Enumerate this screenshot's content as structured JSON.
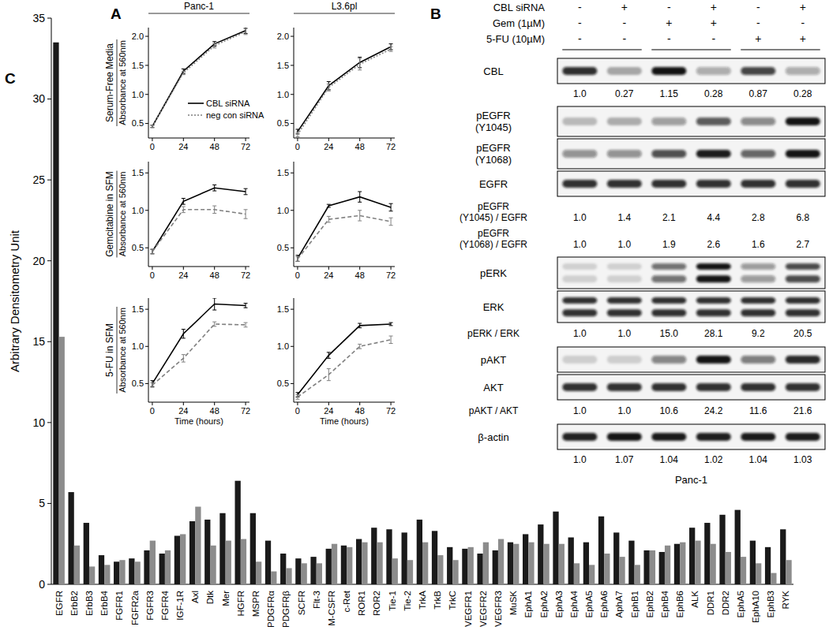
{
  "panel_labels": [
    "A",
    "B",
    "C"
  ],
  "chart_data": [
    {
      "type": "line",
      "title": "Panc-1",
      "condition_label": "Serum-Free Media",
      "ylabel": "Absorbance at 560nm",
      "x": [
        0,
        24,
        48,
        72
      ],
      "xlim": [
        -3,
        75
      ],
      "xticks": [
        0,
        24,
        48,
        72
      ],
      "ylim": [
        0.25,
        2.15
      ],
      "yticks": [
        0.5,
        {
          "value": 1,
          "label": "1.0"
        },
        1.5,
        {
          "value": 2,
          "label": "2.0"
        }
      ],
      "legend": "lower right",
      "series": [
        {
          "name": "CBL siRNA",
          "color": "#000000",
          "line_style": "solid",
          "values": [
            0.45,
            1.4,
            1.87,
            2.1
          ],
          "errors": [
            0.02,
            0.04,
            0.04,
            0.05
          ]
        },
        {
          "name": "neg con siRNA",
          "color": "#808080",
          "line_style": "dotted",
          "values": [
            0.45,
            1.37,
            1.84,
            2.08
          ],
          "errors": [
            0.02,
            0.03,
            0.04,
            0.05
          ]
        }
      ]
    },
    {
      "type": "line",
      "title": "L3.6pl",
      "x": [
        0,
        24,
        48,
        72
      ],
      "xlim": [
        -3,
        75
      ],
      "xticks": [
        0,
        24,
        48,
        72
      ],
      "ylim": [
        0.25,
        2.15
      ],
      "yticks": [
        0.5,
        {
          "value": 1,
          "label": "1.0"
        },
        1.5,
        {
          "value": 2,
          "label": "2.0"
        }
      ],
      "series": [
        {
          "name": "CBL siRNA",
          "color": "#000000",
          "line_style": "solid",
          "values": [
            0.36,
            1.15,
            1.55,
            1.82
          ],
          "errors": [
            0.04,
            0.07,
            0.09,
            0.05
          ]
        },
        {
          "name": "neg con siRNA",
          "color": "#808080",
          "line_style": "dotted",
          "values": [
            0.31,
            1.12,
            1.52,
            1.78
          ],
          "errors": [
            0.04,
            0.06,
            0.1,
            0.04
          ]
        }
      ]
    },
    {
      "type": "line",
      "condition_label": "Gemcitabine in SFM",
      "ylabel": "Absorbance at 560nm",
      "x": [
        0,
        24,
        48,
        72
      ],
      "xlim": [
        -3,
        75
      ],
      "xticks": [
        0,
        24,
        48,
        72
      ],
      "ylim": [
        0.25,
        1.65
      ],
      "yticks": [
        0.5,
        {
          "value": 1,
          "label": "1.0"
        },
        1.5
      ],
      "series": [
        {
          "name": "CBL siRNA",
          "color": "#000000",
          "line_style": "solid",
          "values": [
            0.45,
            1.12,
            1.3,
            1.25
          ],
          "errors": [
            0.03,
            0.04,
            0.04,
            0.04
          ]
        },
        {
          "name": "neg con siRNA",
          "color": "#808080",
          "line_style": "dashed",
          "values": [
            0.45,
            1.01,
            1.01,
            0.95
          ],
          "errors": [
            0.03,
            0.04,
            0.05,
            0.06
          ]
        }
      ]
    },
    {
      "type": "line",
      "x": [
        0,
        24,
        48,
        72
      ],
      "xlim": [
        -3,
        75
      ],
      "xticks": [
        0,
        24,
        48,
        72
      ],
      "ylim": [
        0.25,
        1.65
      ],
      "yticks": [
        0.5,
        {
          "value": 1,
          "label": "1.0"
        },
        1.5
      ],
      "series": [
        {
          "name": "CBL siRNA",
          "color": "#000000",
          "line_style": "solid",
          "values": [
            0.36,
            1.06,
            1.18,
            1.04
          ],
          "errors": [
            0.04,
            0.02,
            0.07,
            0.05
          ]
        },
        {
          "name": "neg con siRNA",
          "color": "#808080",
          "line_style": "dashed",
          "values": [
            0.35,
            0.88,
            0.93,
            0.85
          ],
          "errors": [
            0.03,
            0.04,
            0.07,
            0.05
          ]
        }
      ]
    },
    {
      "type": "line",
      "condition_label": "5-FU in SFM",
      "ylabel": "Absorbance at 560nm",
      "xlabel": "Time (hours)",
      "x": [
        0,
        24,
        48,
        72
      ],
      "xlim": [
        -3,
        75
      ],
      "xticks": [
        0,
        24,
        48,
        72
      ],
      "ylim": [
        0.25,
        1.65
      ],
      "yticks": [
        0.5,
        {
          "value": 1,
          "label": "1.0"
        },
        1.5
      ],
      "series": [
        {
          "name": "CBL siRNA",
          "color": "#000000",
          "line_style": "solid",
          "values": [
            0.5,
            1.17,
            1.57,
            1.55
          ],
          "errors": [
            0.04,
            0.06,
            0.08,
            0.03
          ]
        },
        {
          "name": "neg con siRNA",
          "color": "#808080",
          "line_style": "dashed",
          "values": [
            0.48,
            0.84,
            1.3,
            1.29
          ],
          "errors": [
            0.03,
            0.05,
            0.03,
            0.03
          ]
        }
      ]
    },
    {
      "type": "line",
      "xlabel": "Time (hours)",
      "x": [
        0,
        24,
        48,
        72
      ],
      "xlim": [
        -3,
        75
      ],
      "xticks": [
        0,
        24,
        48,
        72
      ],
      "ylim": [
        0.25,
        1.65
      ],
      "yticks": [
        0.5,
        {
          "value": 1,
          "label": "1.0"
        },
        1.5
      ],
      "series": [
        {
          "name": "CBL siRNA",
          "color": "#000000",
          "line_style": "solid",
          "values": [
            0.35,
            0.88,
            1.28,
            1.3
          ],
          "errors": [
            0.03,
            0.04,
            0.03,
            0.02
          ]
        },
        {
          "name": "neg con siRNA",
          "color": "#808080",
          "line_style": "dashed",
          "values": [
            0.32,
            0.62,
            1.0,
            1.09
          ],
          "errors": [
            0.03,
            0.08,
            0.03,
            0.05
          ]
        }
      ]
    },
    {
      "type": "bar",
      "ylabel": "Arbitrary Densitometry Unit",
      "categories": [
        "EGFR",
        "ErbB2",
        "ErbB3",
        "ErbB4",
        "FGFR1",
        "FGFR2a",
        "FGFR3",
        "FGFR4",
        "IGF-1R",
        "Axl",
        "Dtk",
        "Mer",
        "HGFR",
        "MSPR",
        "PDGFRα",
        "PDGFRβ",
        "SCFR",
        "Flt-3",
        "M-CSFR",
        "c-Ret",
        "ROR1",
        "ROR2",
        "Tie-1",
        "Tie-2",
        "TrkA",
        "TrkB",
        "TrkC",
        "VEGFR1",
        "VEGFR2",
        "VEGFR3",
        "MuSK",
        "EphA1",
        "EphA2",
        "EphA3",
        "EphA4",
        "EphA5",
        "EphA6",
        "AphA7",
        "EphB1",
        "EphB2",
        "EphB4",
        "EphB6",
        "ALK",
        "DDR1",
        "DDR2",
        "EphA5",
        "EphA10",
        "EphB3",
        "RYK"
      ],
      "ylim": [
        0,
        35
      ],
      "yticks": [
        0,
        5,
        10,
        15,
        20,
        25,
        30,
        35
      ],
      "series": [
        {
          "color": "#1a1a1a",
          "values": [
            33.5,
            5.7,
            3.8,
            1.8,
            1.4,
            1.6,
            2.1,
            1.9,
            3.0,
            3.9,
            4.0,
            4.4,
            6.4,
            4.4,
            2.7,
            1.9,
            1.6,
            1.7,
            2.2,
            2.4,
            2.8,
            3.5,
            3.4,
            3.2,
            4.0,
            3.3,
            2.3,
            2.2,
            1.9,
            2.1,
            2.6,
            3.1,
            3.7,
            4.5,
            2.9,
            2.6,
            4.2,
            3.2,
            2.7,
            2.1,
            2.0,
            2.5,
            3.5,
            3.8,
            4.3,
            4.6,
            2.7,
            2.3,
            3.4
          ]
        },
        {
          "color": "#8c8c8c",
          "values": [
            15.3,
            2.4,
            1.1,
            1.2,
            1.5,
            1.4,
            2.7,
            2.1,
            3.1,
            4.8,
            2.4,
            2.7,
            2.8,
            1.4,
            0.8,
            1.0,
            1.3,
            1.3,
            2.5,
            2.3,
            2.6,
            2.6,
            1.6,
            1.5,
            2.6,
            1.8,
            1.5,
            2.3,
            2.6,
            2.8,
            2.5,
            2.6,
            2.5,
            2.5,
            1.3,
            1.2,
            1.9,
            1.7,
            1.2,
            2.1,
            2.4,
            2.6,
            2.7,
            2.5,
            2.0,
            1.7,
            1.3,
            0.7,
            1.5
          ]
        }
      ]
    }
  ],
  "western_blot": {
    "cell_line": "Panc-1",
    "conditions": [
      {
        "label": "CBL siRNA",
        "signs": [
          "-",
          "+",
          "-",
          "+",
          "-",
          "+"
        ]
      },
      {
        "label": "Gem (1µM)",
        "signs": [
          "-",
          "-",
          "+",
          "+",
          "-",
          "-"
        ]
      },
      {
        "label": "5-FU (10µM)",
        "signs": [
          "-",
          "-",
          "-",
          "-",
          "+",
          "+"
        ]
      }
    ],
    "sections": [
      {
        "bands": [
          {
            "label": [
              "CBL"
            ]
          }
        ],
        "ratios": [
          {
            "values": [
              "1.0",
              "0.27",
              "1.15",
              "0.28",
              "0.87",
              "0.28"
            ]
          }
        ]
      },
      {
        "bands": [
          {
            "label": [
              "pEGFR",
              "(Y1045)"
            ]
          },
          {
            "label": [
              "pEGFR",
              "(Y1068)"
            ]
          },
          {
            "label": [
              "EGFR"
            ]
          }
        ],
        "ratios": [
          {
            "label": [
              "pEGFR",
              "(Y1045) / EGFR"
            ],
            "values": [
              "1.0",
              "1.4",
              "2.1",
              "4.4",
              "2.8",
              "6.8"
            ]
          },
          {
            "label": [
              "pEGFR",
              "(Y1068) / EGFR"
            ],
            "values": [
              "1.0",
              "1.0",
              "1.9",
              "2.6",
              "1.6",
              "2.7"
            ]
          }
        ]
      },
      {
        "bands": [
          {
            "label": [
              "pERK"
            ]
          },
          {
            "label": [
              "ERK"
            ]
          }
        ],
        "ratios": [
          {
            "label": [
              "pERK / ERK"
            ],
            "values": [
              "1.0",
              "1.0",
              "15.0",
              "28.1",
              "9.2",
              "20.5"
            ]
          }
        ]
      },
      {
        "bands": [
          {
            "label": [
              "pAKT"
            ]
          },
          {
            "label": [
              "AKT"
            ]
          }
        ],
        "ratios": [
          {
            "label": [
              "pAKT / AKT"
            ],
            "values": [
              "1.0",
              "1.0",
              "10.6",
              "24.2",
              "11.6",
              "21.6"
            ]
          }
        ]
      },
      {
        "bands": [
          {
            "label": [
              "β-actin"
            ]
          }
        ],
        "ratios": [
          {
            "values": [
              "1.0",
              "1.07",
              "1.04",
              "1.02",
              "1.04",
              "1.03"
            ]
          }
        ]
      }
    ]
  }
}
